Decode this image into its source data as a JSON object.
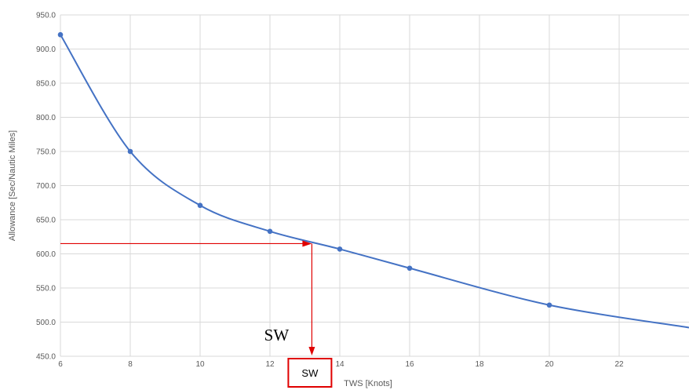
{
  "chart_data": {
    "type": "line",
    "title": "",
    "xlabel": "TWS [Knots]",
    "ylabel": "Allowance [Sec/Nautic Miles]",
    "xlim": [
      6,
      24
    ],
    "ylim": [
      450,
      950
    ],
    "x_ticks": [
      "6",
      "8",
      "10",
      "12",
      "14",
      "16",
      "18",
      "20",
      "22"
    ],
    "y_ticks": [
      "450.0",
      "500.0",
      "550.0",
      "600.0",
      "650.0",
      "700.0",
      "750.0",
      "800.0",
      "850.0",
      "900.0",
      "950.0"
    ],
    "grid": true,
    "series": [
      {
        "x": [
          6,
          8,
          10,
          12,
          14,
          16,
          20
        ],
        "y": [
          921,
          750,
          671,
          633,
          607,
          579,
          525
        ],
        "color": "#4472c4"
      }
    ],
    "curve_end": {
      "x": 24,
      "y": 492
    },
    "annotation": {
      "sw_x": 13.2,
      "sw_y": 615,
      "box_label": "SW",
      "big_label": "SW",
      "color": "#e00000"
    }
  }
}
